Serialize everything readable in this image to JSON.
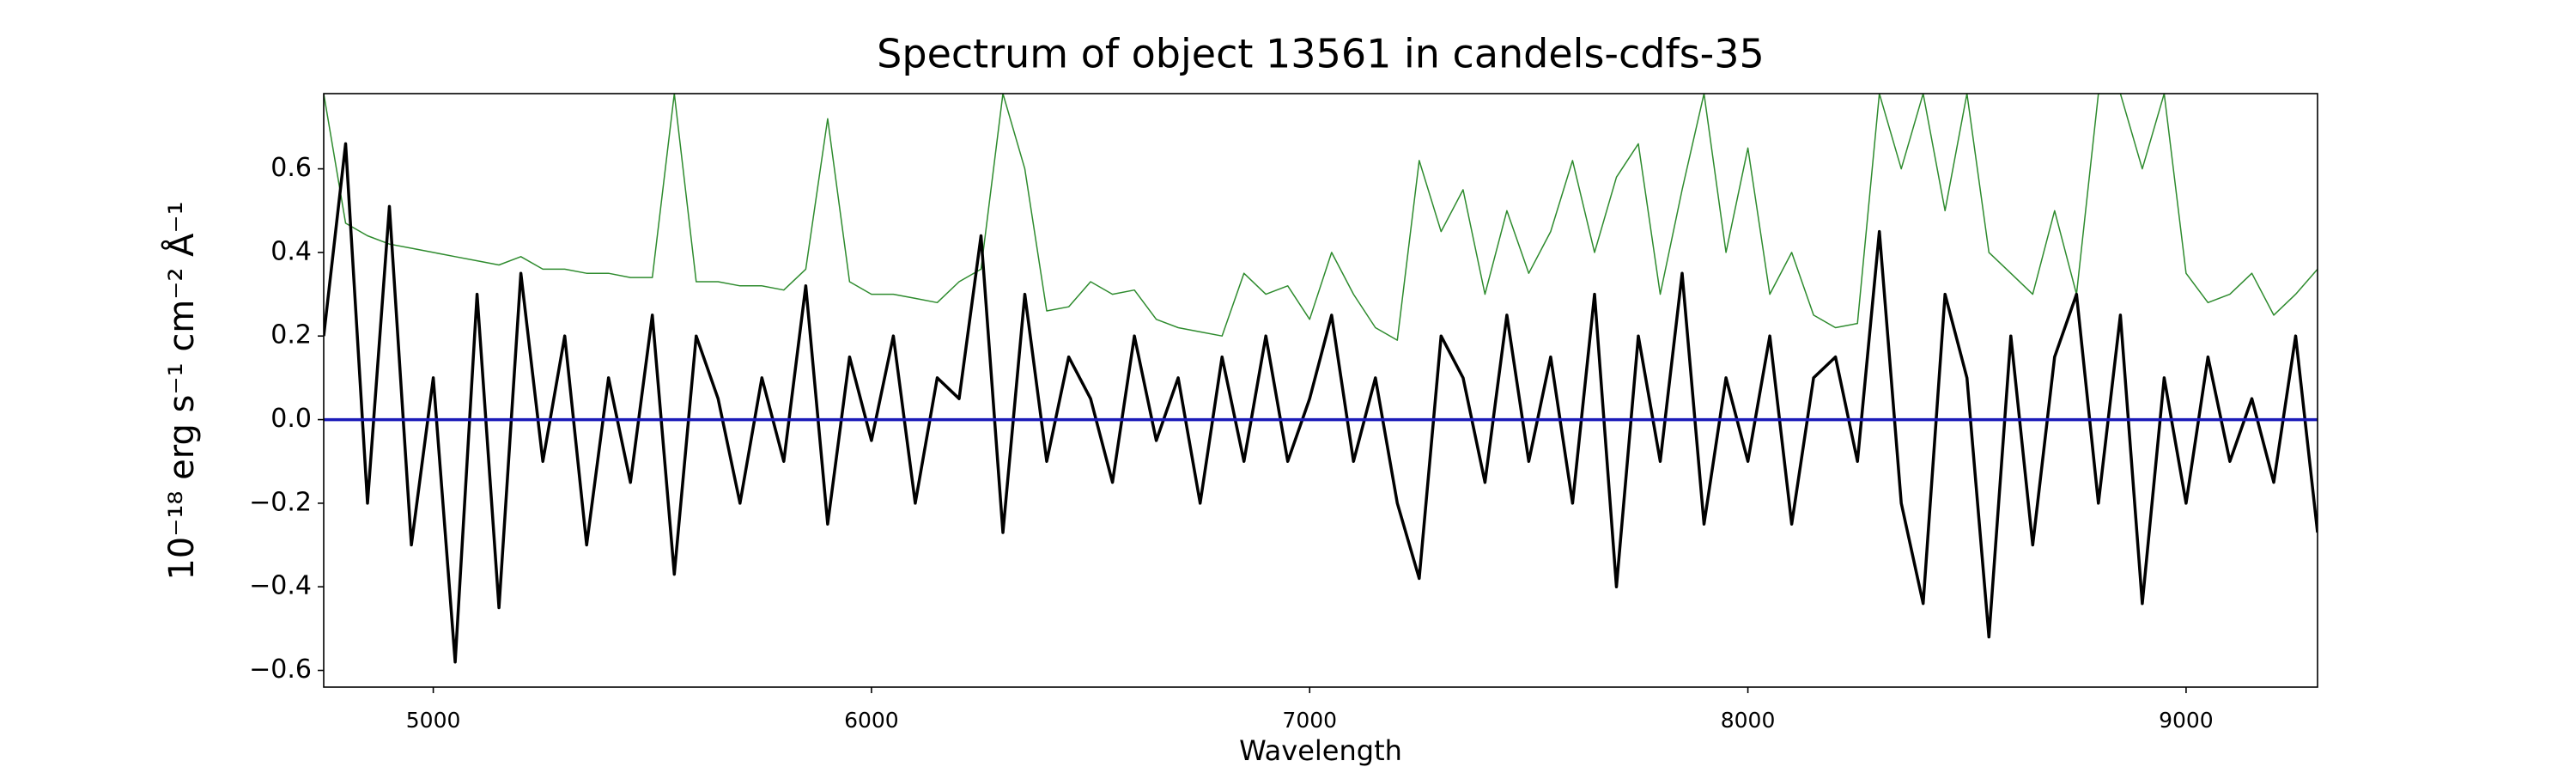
{
  "chart_data": {
    "type": "line",
    "title": "Spectrum of object 13561 in candels-cdfs-35",
    "xlabel": "Wavelength",
    "ylabel": "10⁻¹⁸ erg s⁻¹ cm⁻² Å⁻¹",
    "xlim": [
      4750,
      9300
    ],
    "ylim": [
      -0.64,
      0.78
    ],
    "xticks": [
      5000,
      6000,
      7000,
      8000,
      9000
    ],
    "yticks": [
      {
        "value": -0.6,
        "label": "−0.6"
      },
      {
        "value": -0.4,
        "label": "−0.4"
      },
      {
        "value": -0.2,
        "label": "−0.2"
      },
      {
        "value": 0,
        "label": "0.0"
      },
      0.2,
      0.4,
      0.6
    ],
    "hlines": [
      {
        "value": 0,
        "color": "#1a1ab8"
      }
    ],
    "x": [
      4750,
      4800,
      4850,
      4900,
      4950,
      5000,
      5050,
      5100,
      5150,
      5200,
      5250,
      5300,
      5350,
      5400,
      5450,
      5500,
      5550,
      5600,
      5650,
      5700,
      5750,
      5800,
      5850,
      5900,
      5950,
      6000,
      6050,
      6100,
      6150,
      6200,
      6250,
      6300,
      6350,
      6400,
      6450,
      6500,
      6550,
      6600,
      6650,
      6700,
      6750,
      6800,
      6850,
      6900,
      6950,
      7000,
      7050,
      7100,
      7150,
      7200,
      7250,
      7300,
      7350,
      7400,
      7450,
      7500,
      7550,
      7600,
      7650,
      7700,
      7750,
      7800,
      7850,
      7900,
      7950,
      8000,
      8050,
      8100,
      8150,
      8200,
      8250,
      8300,
      8350,
      8400,
      8450,
      8500,
      8550,
      8600,
      8650,
      8700,
      8750,
      8800,
      8850,
      8900,
      8950,
      9000,
      9050,
      9100,
      9150,
      9200,
      9250,
      9300
    ],
    "series": [
      {
        "color": "#2e8b2e",
        "width": 1.5,
        "values": [
          0.78,
          0.47,
          0.44,
          0.42,
          0.41,
          0.4,
          0.39,
          0.38,
          0.37,
          0.39,
          0.36,
          0.36,
          0.35,
          0.35,
          0.34,
          0.34,
          0.78,
          0.33,
          0.33,
          0.32,
          0.32,
          0.31,
          0.36,
          0.72,
          0.33,
          0.3,
          0.3,
          0.29,
          0.28,
          0.33,
          0.36,
          0.78,
          0.6,
          0.26,
          0.27,
          0.33,
          0.3,
          0.31,
          0.24,
          0.22,
          0.21,
          0.2,
          0.35,
          0.3,
          0.32,
          0.24,
          0.4,
          0.3,
          0.22,
          0.19,
          0.62,
          0.45,
          0.55,
          0.3,
          0.5,
          0.35,
          0.45,
          0.62,
          0.4,
          0.58,
          0.66,
          0.3,
          0.55,
          0.78,
          0.4,
          0.65,
          0.3,
          0.4,
          0.25,
          0.22,
          0.23,
          0.78,
          0.6,
          0.78,
          0.5,
          0.78,
          0.4,
          0.35,
          0.3,
          0.5,
          0.3,
          0.78,
          0.78,
          0.6,
          0.78,
          0.35,
          0.28,
          0.3,
          0.35,
          0.25,
          0.3,
          0.36
        ]
      },
      {
        "color": "#000000",
        "width": 3.5,
        "values": [
          0.2,
          0.66,
          -0.2,
          0.51,
          -0.3,
          0.1,
          -0.58,
          0.3,
          -0.45,
          0.35,
          -0.1,
          0.2,
          -0.3,
          0.1,
          -0.15,
          0.25,
          -0.37,
          0.2,
          0.05,
          -0.2,
          0.1,
          -0.1,
          0.32,
          -0.25,
          0.15,
          -0.05,
          0.2,
          -0.2,
          0.1,
          0.05,
          0.44,
          -0.27,
          0.3,
          -0.1,
          0.15,
          0.05,
          -0.15,
          0.2,
          -0.05,
          0.1,
          -0.2,
          0.15,
          -0.1,
          0.2,
          -0.1,
          0.05,
          0.25,
          -0.1,
          0.1,
          -0.2,
          -0.38,
          0.2,
          0.1,
          -0.15,
          0.25,
          -0.1,
          0.15,
          -0.2,
          0.3,
          -0.4,
          0.2,
          -0.1,
          0.35,
          -0.25,
          0.1,
          -0.1,
          0.2,
          -0.25,
          0.1,
          0.15,
          -0.1,
          0.45,
          -0.2,
          -0.44,
          0.3,
          0.1,
          -0.52,
          0.2,
          -0.3,
          0.15,
          0.3,
          -0.2,
          0.25,
          -0.44,
          0.1,
          -0.2,
          0.15,
          -0.1,
          0.05,
          -0.15,
          0.2,
          -0.27
        ]
      }
    ]
  }
}
